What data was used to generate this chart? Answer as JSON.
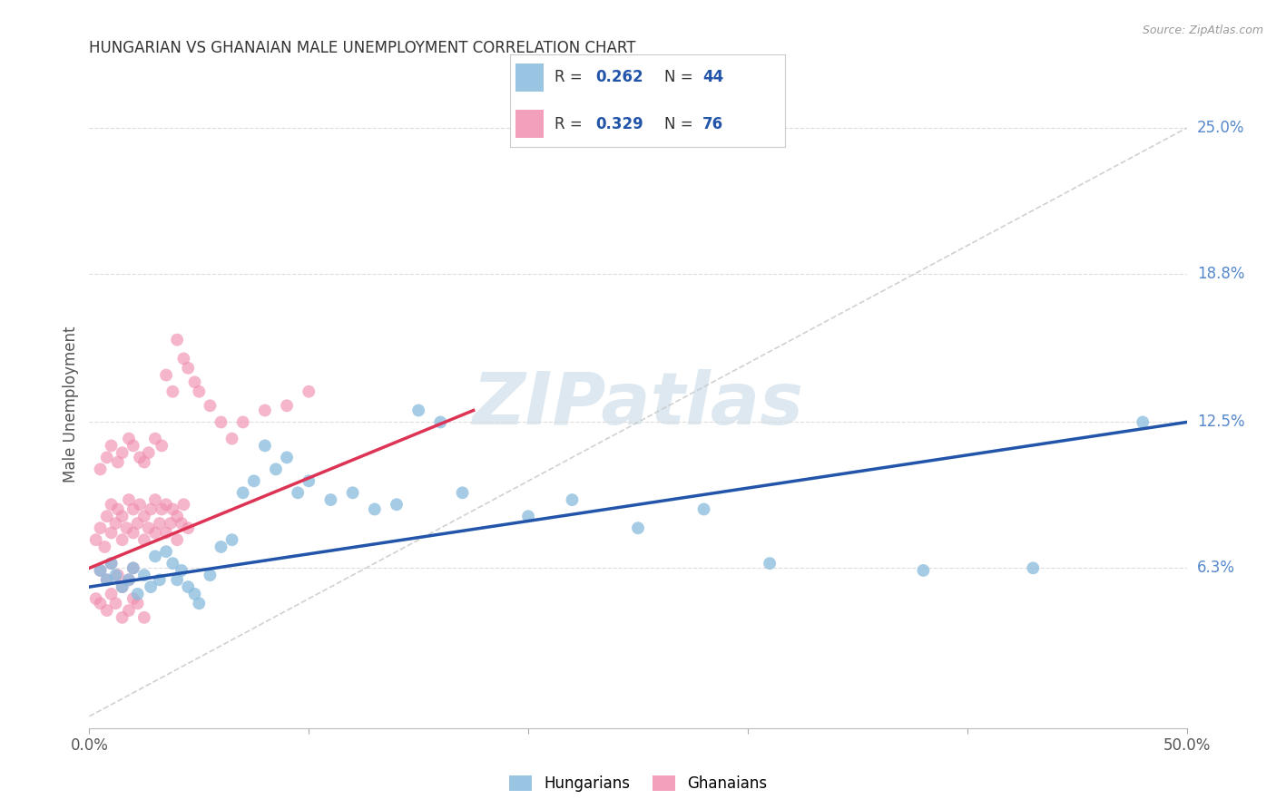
{
  "title": "HUNGARIAN VS GHANAIAN MALE UNEMPLOYMENT CORRELATION CHART",
  "source": "Source: ZipAtlas.com",
  "ylabel": "Male Unemployment",
  "xmin": 0.0,
  "xmax": 0.5,
  "ymin": -0.005,
  "ymax": 0.27,
  "yticks": [
    0.063,
    0.125,
    0.188,
    0.25
  ],
  "ytick_labels": [
    "6.3%",
    "12.5%",
    "18.8%",
    "25.0%"
  ],
  "xticks": [
    0.0,
    0.1,
    0.2,
    0.3,
    0.4,
    0.5
  ],
  "xtick_labels": [
    "0.0%",
    "",
    "",
    "",
    "",
    "50.0%"
  ],
  "hungarian_color": "#88bbdd",
  "ghanaian_color": "#f090b0",
  "hungarian_line_color": "#2255aa",
  "ghanaian_line_color": "#dd3355",
  "R_hungarian": 0.262,
  "N_hungarian": 44,
  "R_ghanaian": 0.329,
  "N_ghanaian": 76,
  "legend_text_color": "#333333",
  "legend_value_color": "#2255aa",
  "legend_N_color": "#dd3355",
  "watermark": "ZIPatlas",
  "watermark_color": "#dde8f0",
  "diag_color": "#cccccc",
  "grid_color": "#dddddd",
  "hung_line_x0": 0.0,
  "hung_line_x1": 0.5,
  "hung_line_y0": 0.055,
  "hung_line_y1": 0.125,
  "ghan_line_x0": 0.0,
  "ghan_line_x1": 0.175,
  "ghan_line_y0": 0.063,
  "ghan_line_y1": 0.13,
  "hungarian_x": [
    0.005,
    0.008,
    0.01,
    0.012,
    0.015,
    0.018,
    0.02,
    0.022,
    0.025,
    0.028,
    0.03,
    0.032,
    0.035,
    0.038,
    0.04,
    0.042,
    0.045,
    0.048,
    0.05,
    0.055,
    0.06,
    0.065,
    0.07,
    0.075,
    0.08,
    0.085,
    0.09,
    0.095,
    0.1,
    0.11,
    0.12,
    0.13,
    0.14,
    0.15,
    0.16,
    0.17,
    0.2,
    0.22,
    0.25,
    0.28,
    0.31,
    0.38,
    0.43,
    0.48
  ],
  "hungarian_y": [
    0.062,
    0.058,
    0.065,
    0.06,
    0.055,
    0.058,
    0.063,
    0.052,
    0.06,
    0.055,
    0.068,
    0.058,
    0.07,
    0.065,
    0.058,
    0.062,
    0.055,
    0.052,
    0.048,
    0.06,
    0.072,
    0.075,
    0.095,
    0.1,
    0.115,
    0.105,
    0.11,
    0.095,
    0.1,
    0.092,
    0.095,
    0.088,
    0.09,
    0.13,
    0.125,
    0.095,
    0.085,
    0.092,
    0.08,
    0.088,
    0.065,
    0.062,
    0.063,
    0.125
  ],
  "ghanaian_x": [
    0.003,
    0.005,
    0.007,
    0.008,
    0.01,
    0.01,
    0.012,
    0.013,
    0.015,
    0.015,
    0.017,
    0.018,
    0.02,
    0.02,
    0.022,
    0.023,
    0.025,
    0.025,
    0.027,
    0.028,
    0.03,
    0.03,
    0.032,
    0.033,
    0.035,
    0.035,
    0.037,
    0.038,
    0.04,
    0.04,
    0.042,
    0.043,
    0.045,
    0.005,
    0.008,
    0.01,
    0.013,
    0.015,
    0.018,
    0.02,
    0.003,
    0.005,
    0.008,
    0.01,
    0.012,
    0.015,
    0.018,
    0.02,
    0.022,
    0.025,
    0.005,
    0.008,
    0.01,
    0.013,
    0.015,
    0.018,
    0.02,
    0.023,
    0.025,
    0.027,
    0.03,
    0.033,
    0.035,
    0.038,
    0.04,
    0.043,
    0.045,
    0.048,
    0.05,
    0.055,
    0.06,
    0.065,
    0.07,
    0.08,
    0.09,
    0.1
  ],
  "ghanaian_y": [
    0.075,
    0.08,
    0.072,
    0.085,
    0.078,
    0.09,
    0.082,
    0.088,
    0.075,
    0.085,
    0.08,
    0.092,
    0.078,
    0.088,
    0.082,
    0.09,
    0.075,
    0.085,
    0.08,
    0.088,
    0.078,
    0.092,
    0.082,
    0.088,
    0.078,
    0.09,
    0.082,
    0.088,
    0.075,
    0.085,
    0.082,
    0.09,
    0.08,
    0.062,
    0.058,
    0.065,
    0.06,
    0.055,
    0.058,
    0.063,
    0.05,
    0.048,
    0.045,
    0.052,
    0.048,
    0.042,
    0.045,
    0.05,
    0.048,
    0.042,
    0.105,
    0.11,
    0.115,
    0.108,
    0.112,
    0.118,
    0.115,
    0.11,
    0.108,
    0.112,
    0.118,
    0.115,
    0.145,
    0.138,
    0.16,
    0.152,
    0.148,
    0.142,
    0.138,
    0.132,
    0.125,
    0.118,
    0.125,
    0.13,
    0.132,
    0.138
  ]
}
